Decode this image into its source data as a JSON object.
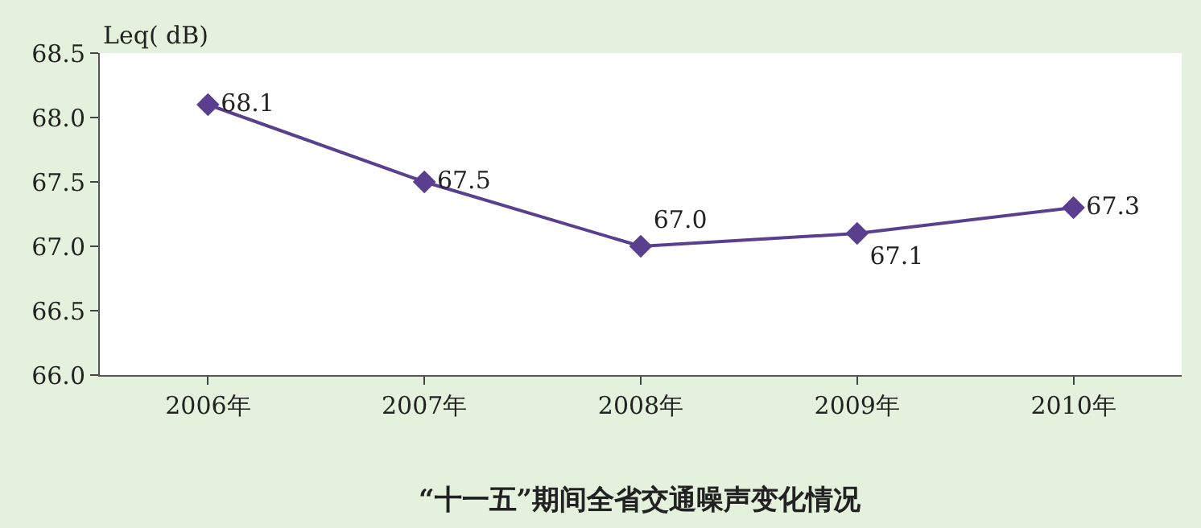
{
  "chart_data": {
    "type": "line",
    "title": "“十一五”期间全省交通噪声变化情况",
    "ylabel": "Leq( dB)",
    "categories": [
      "2006年",
      "2007年",
      "2008年",
      "2009年",
      "2010年"
    ],
    "series": [
      {
        "color": "#5b3f8f",
        "values": [
          68.1,
          67.5,
          67.0,
          67.1,
          67.3
        ],
        "value_labels": [
          "68.1",
          "67.5",
          "67.0",
          "67.1",
          "67.3"
        ]
      }
    ],
    "ylim": [
      66.0,
      68.5
    ],
    "yticks": [
      {
        "value": 66.0,
        "label": "66.0"
      },
      {
        "value": 66.5,
        "label": "66.5"
      },
      {
        "value": 67.0,
        "label": "67.0"
      },
      {
        "value": 67.5,
        "label": "67.5"
      },
      {
        "value": 68.0,
        "label": "68.0"
      },
      {
        "value": 68.5,
        "label": "68.5"
      }
    ],
    "marker": "diamond",
    "line_style": "solid"
  }
}
